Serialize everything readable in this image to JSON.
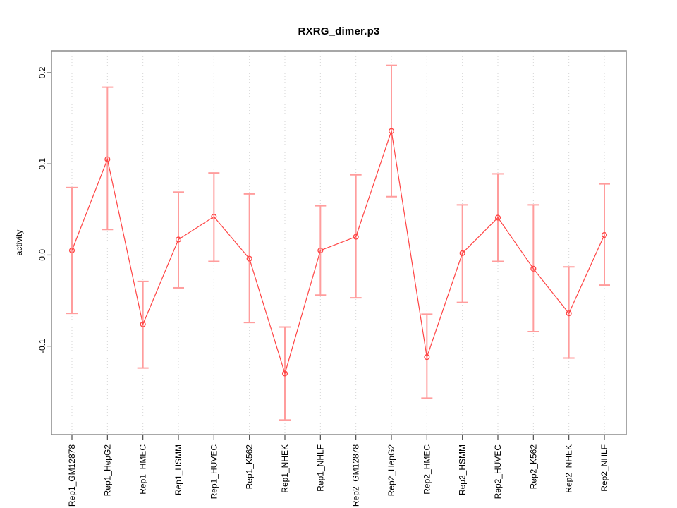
{
  "page": {
    "background": "#ffffff"
  },
  "chart_data": {
    "type": "line",
    "title": "RXRG_dimer.p3",
    "xlabel": "",
    "ylabel": "activity",
    "legend": "none",
    "categories": [
      "Rep1_GM12878",
      "Rep1_HepG2",
      "Rep1_HMEC",
      "Rep1_HSMM",
      "Rep1_HUVEC",
      "Rep1_K562",
      "Rep1_NHEK",
      "Rep1_NHLF",
      "Rep2_GM12878",
      "Rep2_HepG2",
      "Rep2_HMEC",
      "Rep2_HSMM",
      "Rep2_HUVEC",
      "Rep2_K562",
      "Rep2_NHEK",
      "Rep2_NHLF"
    ],
    "series": [
      {
        "name": "activity",
        "marker": "open-circle",
        "values": [
          0.005,
          0.105,
          -0.076,
          0.017,
          0.042,
          -0.004,
          -0.13,
          0.005,
          0.02,
          0.136,
          -0.112,
          0.002,
          0.041,
          -0.015,
          -0.064,
          0.022
        ],
        "error_high": [
          0.074,
          0.184,
          -0.029,
          0.069,
          0.09,
          0.067,
          -0.079,
          0.054,
          0.088,
          0.208,
          -0.065,
          0.055,
          0.089,
          0.055,
          -0.013,
          0.078
        ],
        "error_low": [
          -0.064,
          0.028,
          -0.124,
          -0.036,
          -0.007,
          -0.074,
          -0.181,
          -0.044,
          -0.047,
          0.064,
          -0.157,
          -0.052,
          -0.007,
          -0.084,
          -0.113,
          -0.033
        ]
      }
    ],
    "ytick_labels": [
      "0.2",
      "0.1",
      "0.0",
      "-0.1"
    ],
    "ytick_values": [
      0.2,
      0.1,
      0.0,
      -0.1
    ],
    "ylim": [
      -0.197,
      0.224
    ],
    "grid": {
      "vertical_dotted_per_category": true,
      "horizontal_dotted_zero_line": true
    },
    "colors": {
      "series_line": "#ff4444",
      "marker_stroke": "#ff4444",
      "error_bar": "#ff9d9d",
      "grid_line": "#d6d6d6",
      "axis_box": "#8a8a8a",
      "tick": "#4d4d4d",
      "text": "#000000"
    }
  }
}
